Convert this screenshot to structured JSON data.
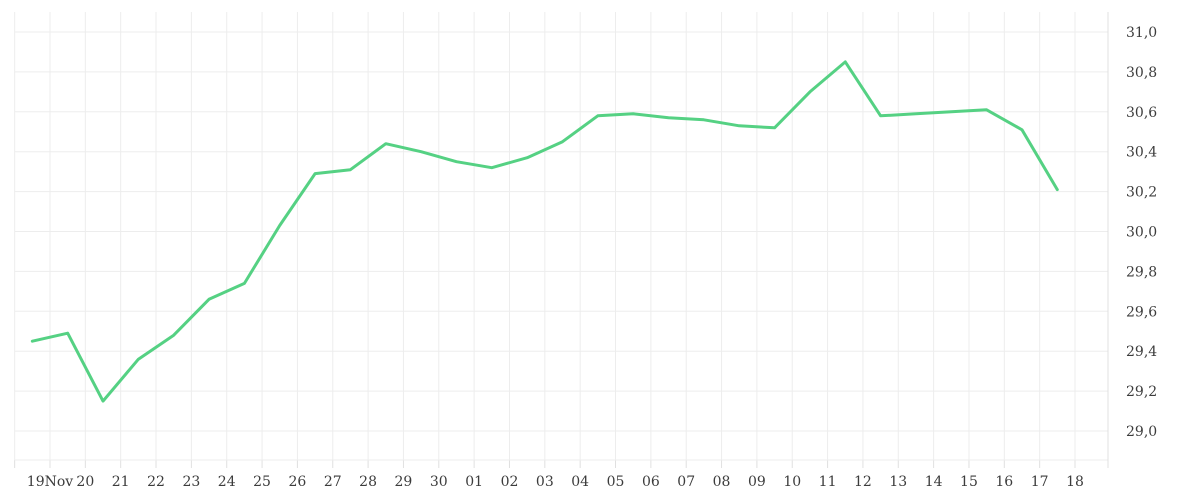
{
  "chart_data": {
    "type": "line",
    "title": "",
    "xlabel": "",
    "ylabel": "",
    "legend": "none",
    "grid": "on",
    "y_axis_position": "right",
    "decimal_separator": "comma",
    "categories": [
      "19Nov",
      "20",
      "21",
      "22",
      "23",
      "24",
      "25",
      "26",
      "27",
      "28",
      "29",
      "30",
      "01",
      "02",
      "03",
      "04",
      "05",
      "06",
      "07",
      "08",
      "09",
      "10",
      "11",
      "12",
      "13",
      "14",
      "15",
      "16",
      "17",
      "18"
    ],
    "values": [
      29.45,
      29.49,
      29.15,
      29.36,
      29.48,
      29.66,
      29.74,
      30.03,
      30.29,
      30.31,
      30.44,
      30.4,
      30.35,
      30.32,
      30.37,
      30.45,
      30.58,
      30.59,
      30.57,
      30.56,
      30.53,
      30.52,
      30.7,
      30.85,
      30.58,
      30.59,
      30.6,
      30.61,
      30.51,
      30.21
    ],
    "y_tick_values": [
      31.0,
      30.8,
      30.6,
      30.4,
      30.2,
      30.0,
      29.8,
      29.6,
      29.4,
      29.2,
      29.0
    ],
    "y_tick_labels": [
      "31,0",
      "30,8",
      "30,6",
      "30,4",
      "30,2",
      "30,0",
      "29,8",
      "29,6",
      "29,4",
      "29,2",
      "29,0"
    ],
    "ylim": [
      28.85,
      31.1
    ],
    "colors": {
      "line": "#55d183",
      "grid": "#ededed",
      "axis_line": "#e0e0e0",
      "tick": "#e0e0e0",
      "label": "#3c3c3c",
      "background": "#ffffff"
    }
  }
}
